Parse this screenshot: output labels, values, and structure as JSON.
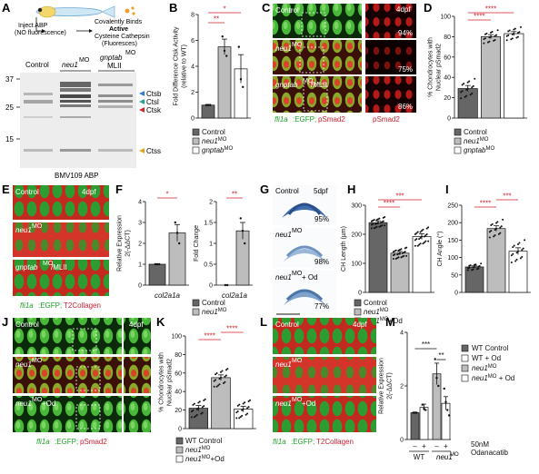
{
  "panels": {
    "A": {
      "letter": "A",
      "step1": "Inject ABP",
      "step1b": "(NO fluorescence)",
      "step2": "Covalently Binds",
      "step2b": "Active",
      "step2c": "Cysteine Cathepsin",
      "step2d": "(Fluoresces)",
      "lanes": [
        "Control",
        "neu1",
        "gnptab"
      ],
      "lane_sup": {
        "neu1": "MO",
        "gnptab": "MO"
      },
      "lane_sub": "MLII",
      "mw_markers": [
        "37",
        "25",
        "15"
      ],
      "bands": [
        {
          "label": "Ctsb",
          "color": "#2a7fd4"
        },
        {
          "label": "Ctsl",
          "color": "#22a78f"
        },
        {
          "label": "Ctsk",
          "color": "#d62728"
        },
        {
          "label": "Ctss",
          "color": "#e8a020"
        }
      ],
      "caption": "BMV109 ABP"
    },
    "B": {
      "letter": "B",
      "sig1": "*",
      "sig2": "**"
    },
    "C": {
      "letter": "C",
      "time": "4dpf",
      "rows": [
        {
          "label": "Control",
          "pct": "94%"
        },
        {
          "label": "neu1",
          "sup": "MO",
          "pct": "75%"
        },
        {
          "label": "gnptab",
          "sup": "MO",
          "suffix": "/MLII",
          "pct": "86%"
        }
      ],
      "caption_green": "fli1a",
      "caption_green2": ":EGFP;",
      "caption_red": "pSmad2",
      "caption_right": "pSmad2"
    },
    "D": {
      "letter": "D",
      "sig1": "****",
      "sig2": "****"
    },
    "E": {
      "letter": "E",
      "time": "4dpf",
      "rows": [
        {
          "label": "Control"
        },
        {
          "label": "neu1",
          "sup": "MO"
        },
        {
          "label": "gnptab",
          "sup": "MO",
          "suffix": "/MLII"
        }
      ],
      "caption_green": "fli1a",
      "caption_green2": ":EGFP;",
      "caption_red": "T2Collagen"
    },
    "F": {
      "letter": "F",
      "sig1": "*",
      "sig2": "**"
    },
    "G": {
      "letter": "G",
      "rows": [
        {
          "label": "Control",
          "time": "5dpf",
          "pct": "95%"
        },
        {
          "label": "neu1",
          "sup": "MO",
          "pct": "98%"
        },
        {
          "label": "neu1",
          "sup": "MO",
          "suffix": "+ Od",
          "pct": "77%"
        }
      ]
    },
    "H": {
      "letter": "H",
      "sig1": "****",
      "sig2": "***"
    },
    "I": {
      "letter": "I",
      "sig1": "****",
      "sig2": "***"
    },
    "J": {
      "letter": "J",
      "time": "4dpf",
      "rows": [
        {
          "label": "Control"
        },
        {
          "label": "neu1",
          "sup": "MO"
        },
        {
          "label": "neu1",
          "sup": "MO",
          "suffix": "+Od"
        }
      ],
      "caption_green": "fli1a",
      "caption_green2": ":EGFP;",
      "caption_red": "pSmad2"
    },
    "K": {
      "letter": "K",
      "sig1": "****",
      "sig2": "****"
    },
    "L": {
      "letter": "L",
      "time": "4dpf",
      "rows": [
        {
          "label": "Control"
        },
        {
          "label": "neu1",
          "sup": "MO"
        },
        {
          "label": "neu1",
          "sup": "MO",
          "suffix": "+Od"
        }
      ],
      "caption_green": "fli1a",
      "caption_green2": ":EGFP;",
      "caption_red": "T2Collagen"
    },
    "M": {
      "letter": "M",
      "sig1": "***",
      "sig2": "**",
      "od_label_1": "50nM",
      "od_label_2": "Odanacatib",
      "minus": "–",
      "plus": "+",
      "groups": [
        "WT",
        "neu1"
      ],
      "group_sup": "MO"
    }
  },
  "colors": {
    "control": "#666666",
    "neu1": "#bdbdbd",
    "third": "#ffffff",
    "sig": "#d0202f",
    "green": "#1fa02a",
    "red": "#d0202f"
  },
  "chart_data": [
    {
      "panel": "B",
      "type": "bar",
      "ylabel": "Fold Difference Ctsk Activity\n(relative to WT)",
      "ylim": [
        0,
        8
      ],
      "yticks": [
        0,
        2,
        4,
        6,
        8
      ],
      "legend": [
        {
          "name": "Control"
        },
        {
          "name": "neu1",
          "sup": "MO"
        },
        {
          "name": "gnptab",
          "sup": "MO"
        }
      ],
      "series": [
        {
          "name": "Control",
          "values": [
            1.0
          ],
          "err": 0.05,
          "points": [
            1.0,
            1.0,
            1.0
          ]
        },
        {
          "name": "neu1",
          "values": [
            5.5
          ],
          "err": 0.6,
          "points": [
            6.3,
            5.2,
            4.8
          ]
        },
        {
          "name": "gnptab",
          "values": [
            3.8
          ],
          "err": 1.1,
          "points": [
            5.5,
            3.0,
            2.4
          ]
        }
      ]
    },
    {
      "panel": "D",
      "type": "bar",
      "ylabel": "% Chondrocytes with\nNuclear pSmad2",
      "ylim": [
        0,
        100
      ],
      "yticks": [
        0,
        20,
        40,
        60,
        80,
        100
      ],
      "legend": [
        {
          "name": "Control"
        },
        {
          "name": "neu1",
          "sup": "MO"
        },
        {
          "name": "gnptab",
          "sup": "MO"
        }
      ],
      "series": [
        {
          "name": "Control",
          "values": [
            29
          ],
          "err": 3
        },
        {
          "name": "neu1",
          "values": [
            80
          ],
          "err": 2
        },
        {
          "name": "gnptab",
          "values": [
            83
          ],
          "err": 2
        }
      ]
    },
    {
      "panel": "F1",
      "type": "bar",
      "ylabel": "Relative Expression\n2(-ΔΔCT)",
      "categories": [
        "col2a1a"
      ],
      "ylim": [
        0,
        4
      ],
      "yticks": [
        0,
        1,
        2,
        3,
        4
      ],
      "series": [
        {
          "name": "Control",
          "values": [
            1.0
          ],
          "err": 0.02,
          "points": [
            1.0,
            1.0,
            1.0
          ]
        },
        {
          "name": "neu1",
          "values": [
            2.5
          ],
          "err": 0.4,
          "points": [
            3.0,
            2.5,
            2.0
          ]
        }
      ]
    },
    {
      "panel": "F2",
      "type": "bar",
      "ylabel": "Fold Change",
      "categories": [
        "col2a1a"
      ],
      "ylim": [
        0,
        2.0
      ],
      "yticks": [
        0,
        0.5,
        1.0,
        1.5,
        2.0
      ],
      "legend": [
        {
          "name": "Control"
        },
        {
          "name": "neu1",
          "sup": "MO"
        }
      ],
      "series": [
        {
          "name": "Control",
          "values": [
            0.0
          ],
          "err": 0,
          "points": [
            0.0,
            0.0
          ]
        },
        {
          "name": "neu1",
          "values": [
            1.3
          ],
          "err": 0.2,
          "points": [
            1.6,
            1.3,
            1.0
          ]
        }
      ]
    },
    {
      "panel": "H",
      "type": "bar",
      "ylabel": "CH Length (µm)",
      "ylim": [
        0,
        300
      ],
      "yticks": [
        0,
        100,
        200,
        300
      ],
      "legend": [
        {
          "name": "Control"
        },
        {
          "name": "neu1",
          "sup": "MO"
        },
        {
          "name": "neu1",
          "sup": "MO",
          "suffix": "+Od"
        }
      ],
      "series": [
        {
          "name": "Control",
          "values": [
            240
          ],
          "err": 6
        },
        {
          "name": "neu1",
          "values": [
            135
          ],
          "err": 6
        },
        {
          "name": "neu1+Od",
          "values": [
            192
          ],
          "err": 10
        }
      ]
    },
    {
      "panel": "I",
      "type": "bar",
      "ylabel": "CH Angle (°)",
      "ylim": [
        0,
        250
      ],
      "yticks": [
        0,
        50,
        100,
        150,
        200,
        250
      ],
      "series": [
        {
          "name": "Control",
          "values": [
            73
          ],
          "err": 3
        },
        {
          "name": "neu1",
          "values": [
            183
          ],
          "err": 8
        },
        {
          "name": "neu1+Od",
          "values": [
            118
          ],
          "err": 10
        }
      ]
    },
    {
      "panel": "K",
      "type": "bar",
      "ylabel": "% Chondrocytes with\nNuclear pSmad2",
      "ylim": [
        0,
        100
      ],
      "yticks": [
        0,
        20,
        40,
        60,
        80,
        100
      ],
      "legend": [
        {
          "name": "WT Control"
        },
        {
          "name": "neu1",
          "sup": "MO"
        },
        {
          "name": "neu1",
          "sup": "MO",
          "suffix": "+Od"
        }
      ],
      "series": [
        {
          "name": "WT Control",
          "values": [
            22
          ],
          "err": 3
        },
        {
          "name": "neu1",
          "values": [
            55
          ],
          "err": 3
        },
        {
          "name": "neu1+Od",
          "values": [
            21
          ],
          "err": 3
        }
      ]
    },
    {
      "panel": "M",
      "type": "bar",
      "ylabel": "Relative Expression\n2(-ΔΔCT)",
      "ylim": [
        0,
        4
      ],
      "yticks": [
        0,
        2,
        4
      ],
      "legend": [
        {
          "name": "WT Control"
        },
        {
          "name": "WT + Od"
        },
        {
          "name": "neu1",
          "sup": "MO"
        },
        {
          "name": "neu1",
          "sup": "MO",
          "suffix": " + Od"
        }
      ],
      "series": [
        {
          "name": "WT Control",
          "values": [
            1.0
          ],
          "err": 0.02,
          "points": [
            1.0,
            1.0,
            1.0
          ]
        },
        {
          "name": "WT + Od",
          "values": [
            1.2
          ],
          "err": 0.12,
          "points": [
            1.3,
            1.15,
            1.1
          ]
        },
        {
          "name": "neu1",
          "values": [
            2.45
          ],
          "err": 0.4,
          "points": [
            3.0,
            2.3,
            2.0
          ]
        },
        {
          "name": "neu1 + Od",
          "values": [
            1.35
          ],
          "err": 0.25,
          "points": [
            1.9,
            1.4,
            1.1,
            0.9
          ]
        }
      ]
    }
  ]
}
